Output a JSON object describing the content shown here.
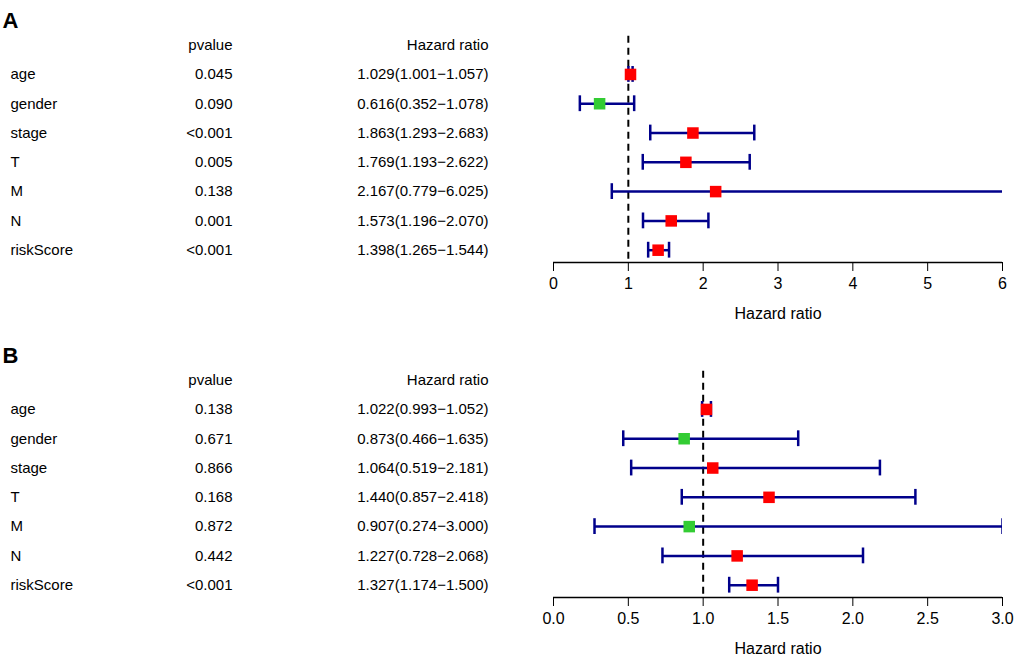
{
  "chart_data": [
    {
      "type": "forest",
      "panel_label": "A",
      "column_headers": [
        "pvalue",
        "Hazard ratio"
      ],
      "categories": [
        "age",
        "gender",
        "stage",
        "T",
        "M",
        "N",
        "riskScore"
      ],
      "pvalue_labels": [
        "0.045",
        "0.090",
        "<0.001",
        "0.005",
        "0.138",
        "0.001",
        "<0.001"
      ],
      "values": [
        1.029,
        0.616,
        1.863,
        1.769,
        2.167,
        1.573,
        1.398
      ],
      "ci_lower": [
        1.001,
        0.352,
        1.293,
        1.193,
        0.779,
        1.196,
        1.265
      ],
      "ci_upper": [
        1.057,
        1.078,
        2.683,
        2.622,
        6.025,
        2.07,
        1.544
      ],
      "value_labels": [
        "1.029(1.001−1.057)",
        "0.616(0.352−1.078)",
        "1.863(1.293−2.683)",
        "1.769(1.193−2.622)",
        "2.167(0.779−6.025)",
        "1.573(1.196−2.070)",
        "1.398(1.265−1.544)"
      ],
      "colors": [
        "#ff0000",
        "#33cc33",
        "#ff0000",
        "#ff0000",
        "#ff0000",
        "#ff0000",
        "#ff0000"
      ],
      "color": "#00008b",
      "reference_line": 1,
      "xlabel": "Hazard ratio",
      "xlim": [
        0,
        6
      ],
      "xticks": [
        0,
        1,
        2,
        3,
        4,
        5,
        6
      ]
    },
    {
      "type": "forest",
      "panel_label": "B",
      "column_headers": [
        "pvalue",
        "Hazard ratio"
      ],
      "categories": [
        "age",
        "gender",
        "stage",
        "T",
        "M",
        "N",
        "riskScore"
      ],
      "pvalue_labels": [
        "0.138",
        "0.671",
        "0.866",
        "0.168",
        "0.872",
        "0.442",
        "<0.001"
      ],
      "values": [
        1.022,
        0.873,
        1.064,
        1.44,
        0.907,
        1.227,
        1.327
      ],
      "ci_lower": [
        0.993,
        0.466,
        0.519,
        0.857,
        0.274,
        0.728,
        1.174
      ],
      "ci_upper": [
        1.052,
        1.635,
        2.181,
        2.418,
        3.0,
        2.068,
        1.5
      ],
      "value_labels": [
        "1.022(0.993−1.052)",
        "0.873(0.466−1.635)",
        "1.064(0.519−2.181)",
        "1.440(0.857−2.418)",
        "0.907(0.274−3.000)",
        "1.227(0.728−2.068)",
        "1.327(1.174−1.500)"
      ],
      "colors": [
        "#ff0000",
        "#33cc33",
        "#ff0000",
        "#ff0000",
        "#33cc33",
        "#ff0000",
        "#ff0000"
      ],
      "color": "#00008b",
      "reference_line": 1,
      "xlabel": "Hazard ratio",
      "xlim": [
        0,
        3
      ],
      "xticks": [
        {
          "value": 0,
          "label": "0.0"
        },
        {
          "value": 0.5,
          "label": "0.5"
        },
        {
          "value": 1,
          "label": "1.0"
        },
        {
          "value": 1.5,
          "label": "1.5"
        },
        {
          "value": 2,
          "label": "2.0"
        },
        {
          "value": 2.5,
          "label": "2.5"
        },
        {
          "value": 3,
          "label": "3.0"
        }
      ]
    }
  ]
}
